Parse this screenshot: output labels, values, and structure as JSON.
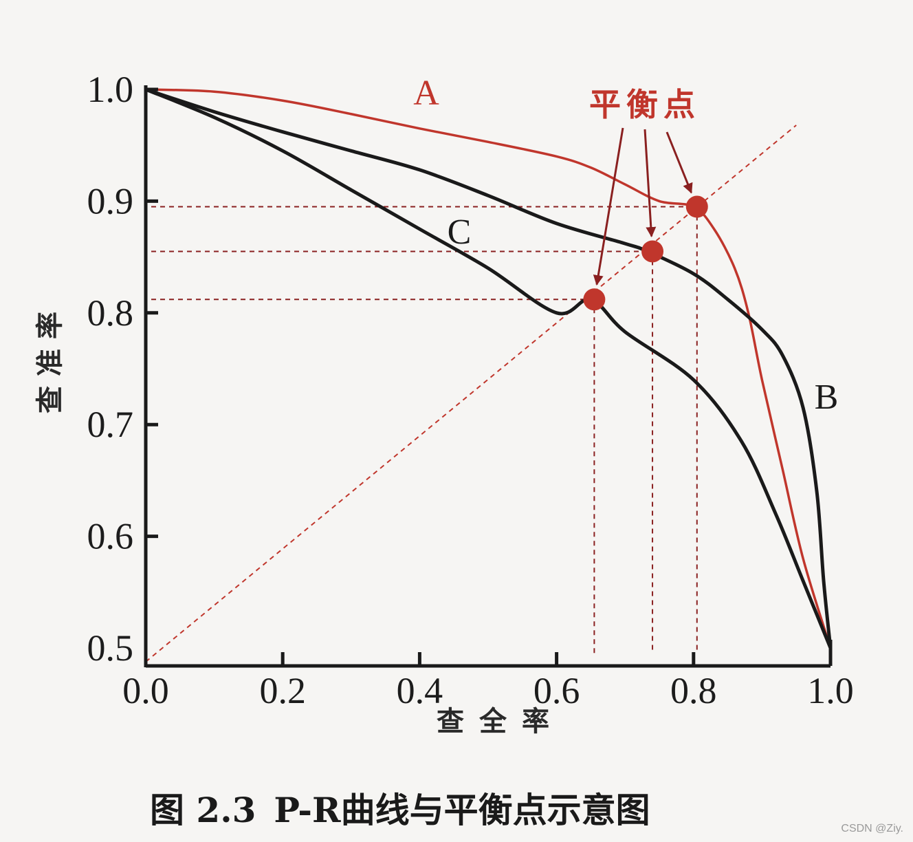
{
  "colors": {
    "red": "#c0362c",
    "dark_red": "#8a2020",
    "black": "#1a1a1a",
    "background": "#f6f5f3"
  },
  "chart_data": {
    "type": "line",
    "title": "",
    "xlabel": "查全率",
    "ylabel": "查准率",
    "xlim": [
      0.0,
      1.0
    ],
    "ylim": [
      0.48,
      1.0
    ],
    "x_ticks": [
      "0.0",
      "0.2",
      "0.4",
      "0.6",
      "0.8",
      "1.0"
    ],
    "y_ticks": [
      "0.5",
      "0.6",
      "0.7",
      "0.8",
      "0.9",
      "1.0"
    ],
    "grid": false,
    "series": [
      {
        "name": "A",
        "color": "#c0362c",
        "x": [
          0.0,
          0.1,
          0.2,
          0.3,
          0.4,
          0.5,
          0.6,
          0.65,
          0.7,
          0.75,
          0.8,
          0.83,
          0.86,
          0.88,
          0.9,
          0.93,
          0.96,
          1.0
        ],
        "y": [
          1.0,
          0.998,
          0.99,
          0.978,
          0.965,
          0.953,
          0.94,
          0.93,
          0.915,
          0.9,
          0.895,
          0.875,
          0.84,
          0.8,
          0.74,
          0.66,
          0.58,
          0.5
        ]
      },
      {
        "name": "B",
        "color": "#1a1a1a",
        "x": [
          0.0,
          0.1,
          0.2,
          0.3,
          0.4,
          0.5,
          0.6,
          0.7,
          0.733,
          0.8,
          0.85,
          0.9,
          0.93,
          0.96,
          0.98,
          0.99,
          1.0
        ],
        "y": [
          1.0,
          0.98,
          0.962,
          0.945,
          0.928,
          0.905,
          0.88,
          0.862,
          0.855,
          0.835,
          0.812,
          0.785,
          0.762,
          0.715,
          0.64,
          0.56,
          0.5
        ]
      },
      {
        "name": "C",
        "color": "#1a1a1a",
        "x": [
          0.0,
          0.1,
          0.2,
          0.3,
          0.4,
          0.5,
          0.6,
          0.65,
          0.7,
          0.8,
          0.87,
          0.92,
          0.96,
          1.0
        ],
        "y": [
          1.0,
          0.975,
          0.945,
          0.91,
          0.875,
          0.84,
          0.8,
          0.812,
          0.783,
          0.74,
          0.685,
          0.62,
          0.56,
          0.5
        ]
      }
    ],
    "diagonal": {
      "x": [
        0.0,
        0.95
      ],
      "y": [
        0.48,
        0.95
      ]
    },
    "break_even_points": [
      {
        "series": "C",
        "recall": 0.655,
        "precision": 0.812
      },
      {
        "series": "B",
        "recall": 0.74,
        "precision": 0.855
      },
      {
        "series": "A",
        "recall": 0.805,
        "precision": 0.895
      }
    ],
    "annotation": "平衡点"
  },
  "caption": {
    "figure": "图 2.3",
    "text": "P-R曲线与平衡点示意图"
  },
  "watermark": "CSDN @Ziy."
}
